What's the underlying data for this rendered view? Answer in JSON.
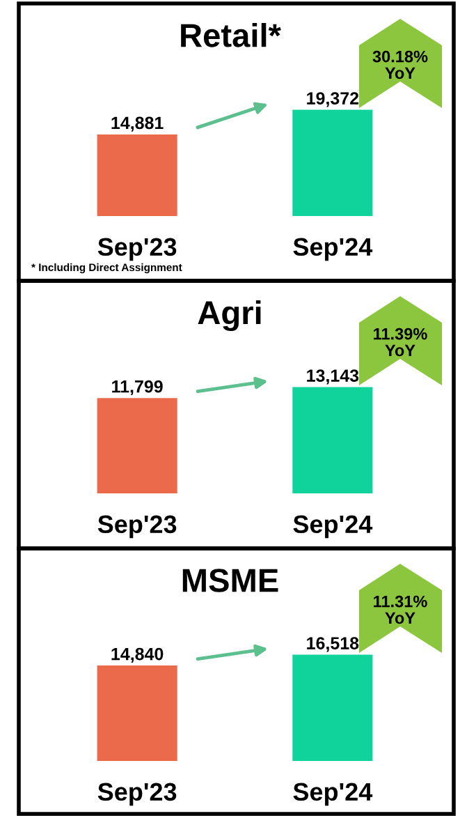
{
  "chart_data": [
    {
      "type": "bar",
      "title": "Retail*",
      "categories": [
        "Sep'23",
        "Sep'24"
      ],
      "values": [
        14881,
        19372
      ],
      "value_labels": [
        "14,881",
        "19,372"
      ],
      "colors": [
        "#ec6a4c",
        "#0fd39a"
      ],
      "annotations": [
        "30.18%\nYoY",
        "* Including Direct Assignment"
      ]
    },
    {
      "type": "bar",
      "title": "Agri",
      "categories": [
        "Sep'23",
        "Sep'24"
      ],
      "values": [
        11799,
        13143
      ],
      "value_labels": [
        "11,799",
        "13,143"
      ],
      "colors": [
        "#ec6a4c",
        "#0fd39a"
      ],
      "annotations": [
        "11.39%\nYoY"
      ]
    },
    {
      "type": "bar",
      "title": "MSME",
      "categories": [
        "Sep'23",
        "Sep'24"
      ],
      "values": [
        14840,
        16518
      ],
      "value_labels": [
        "14,840",
        "16,518"
      ],
      "colors": [
        "#ec6a4c",
        "#0fd39a"
      ],
      "annotations": [
        "11.31%\nYoY"
      ]
    }
  ]
}
